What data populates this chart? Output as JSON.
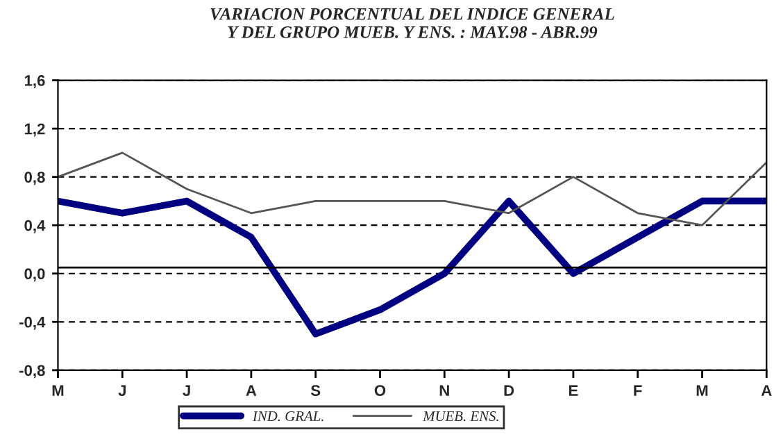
{
  "chart_data": {
    "type": "line",
    "title": "VARIACION PORCENTUAL DEL INDICE GENERAL\nY DEL GRUPO MUEB. Y ENS. : MAY.98 - ABR.99",
    "categories": [
      "M",
      "J",
      "J",
      "A",
      "S",
      "O",
      "N",
      "D",
      "E",
      "F",
      "M",
      "A"
    ],
    "series": [
      {
        "name": "IND. GRAL.",
        "color": "#000080",
        "values": [
          0.6,
          0.5,
          0.6,
          0.3,
          -0.5,
          -0.3,
          0.0,
          0.6,
          0.0,
          0.3,
          0.6,
          0.6
        ]
      },
      {
        "name": "MUEB. ENS.",
        "color": "#555555",
        "values": [
          0.8,
          1.0,
          0.7,
          0.5,
          0.6,
          0.6,
          0.6,
          0.5,
          0.8,
          0.5,
          0.4,
          0.92
        ]
      }
    ],
    "ylim": [
      -0.8,
      1.6
    ],
    "yticks": [
      {
        "value": -0.8,
        "label": "-0,8"
      },
      {
        "value": -0.4,
        "label": "-0,4"
      },
      {
        "value": 0,
        "label": "0,0"
      },
      {
        "value": 0.4,
        "label": "0,4"
      },
      {
        "value": 0.8,
        "label": "0,8"
      },
      {
        "value": 1.2,
        "label": "1,2"
      },
      {
        "value": 1.6,
        "label": "1,6"
      }
    ],
    "ref_lines": [
      {
        "axis": "y",
        "value": 0.05,
        "color": "#000000"
      }
    ],
    "grid": "y",
    "legend": "bottom"
  }
}
